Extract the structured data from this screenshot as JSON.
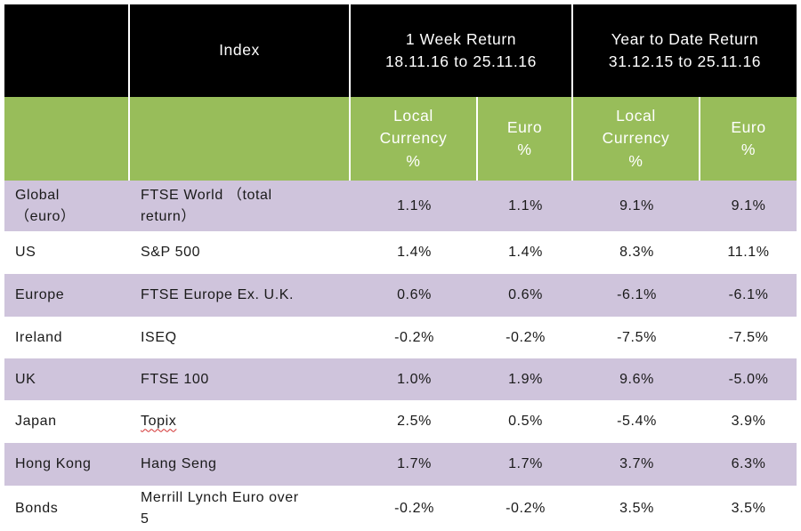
{
  "header": {
    "index_label": "Index",
    "week_return": "1 Week Return\n18.11.16 to 25.11.16",
    "ytd_return": "Year to Date Return\n31.12.15 to 25.11.16"
  },
  "subheader": {
    "local_currency": "Local\nCurrency\n%",
    "euro": "Euro\n%"
  },
  "rows": [
    {
      "region": "Global\n（euro）",
      "index": "FTSE World （total\nreturn）",
      "wk_local": "1.1%",
      "wk_euro": "1.1%",
      "ytd_local": "9.1%",
      "ytd_euro": "9.1%"
    },
    {
      "region": "US",
      "index": "S&P 500",
      "wk_local": "1.4%",
      "wk_euro": "1.4%",
      "ytd_local": "8.3%",
      "ytd_euro": "11.1%"
    },
    {
      "region": "Europe",
      "index": "FTSE Europe Ex. U.K.",
      "wk_local": "0.6%",
      "wk_euro": "0.6%",
      "ytd_local": "-6.1%",
      "ytd_euro": "-6.1%"
    },
    {
      "region": "Ireland",
      "index": "ISEQ",
      "wk_local": "-0.2%",
      "wk_euro": "-0.2%",
      "ytd_local": "-7.5%",
      "ytd_euro": "-7.5%"
    },
    {
      "region": "UK",
      "index": "FTSE 100",
      "wk_local": "1.0%",
      "wk_euro": "1.9%",
      "ytd_local": "9.6%",
      "ytd_euro": "-5.0%"
    },
    {
      "region": "Japan",
      "index": "Topix",
      "wk_local": "2.5%",
      "wk_euro": "0.5%",
      "ytd_local": "-5.4%",
      "ytd_euro": "3.9%"
    },
    {
      "region": "Hong Kong",
      "index": "Hang Seng",
      "wk_local": "1.7%",
      "wk_euro": "1.7%",
      "ytd_local": "3.7%",
      "ytd_euro": "6.3%"
    },
    {
      "region": "Bonds",
      "index": "Merrill Lynch Euro over\n5",
      "wk_local": "-0.2%",
      "wk_euro": "-0.2%",
      "ytd_local": "3.5%",
      "ytd_euro": "3.5%"
    }
  ],
  "colors": {
    "header_bg": "#000000",
    "subheader_bg": "#98bd5a",
    "band_lavender": "#cfc4dc",
    "band_white": "#ffffff"
  }
}
